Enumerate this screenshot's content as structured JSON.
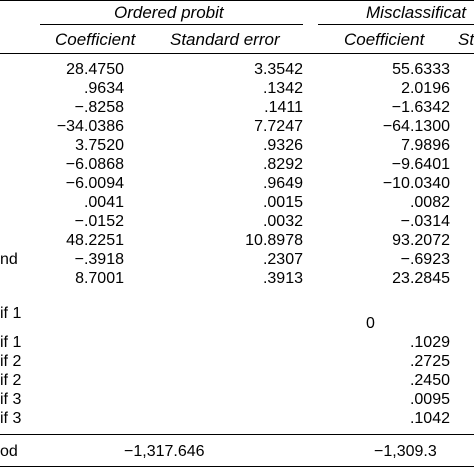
{
  "headers": {
    "group1": "Ordered probit",
    "group2": "Misclassificat",
    "coef1": "Coefficient",
    "se1": "Standard error",
    "coef2": "Coefficient",
    "se2_partial": "St"
  },
  "rows": [
    {
      "label": "",
      "c1": "28.4750",
      "c2": "3.3542",
      "c3": "55.6333"
    },
    {
      "label": "",
      "c1": ".9634",
      "c2": ".1342",
      "c3": "2.0196"
    },
    {
      "label": "",
      "c1": "−.8258",
      "c2": ".1411",
      "c3": "−1.6342"
    },
    {
      "label": "",
      "c1": "−34.0386",
      "c2": "7.7247",
      "c3": "−64.1300"
    },
    {
      "label": "",
      "c1": "3.7520",
      "c2": ".9326",
      "c3": "7.9896"
    },
    {
      "label": "",
      "c1": "−6.0868",
      "c2": ".8292",
      "c3": "−9.6401"
    },
    {
      "label": "",
      "c1": "−6.0094",
      "c2": ".9649",
      "c3": "−10.0340"
    },
    {
      "label": "",
      "c1": ".0041",
      "c2": ".0015",
      "c3": ".0082"
    },
    {
      "label": "",
      "c1": "−.0152",
      "c2": ".0032",
      "c3": "−.0314"
    },
    {
      "label": "",
      "c1": "48.2251",
      "c2": "10.8978",
      "c3": "93.2072"
    },
    {
      "label": "nd",
      "c1": "−.3918",
      "c2": ".2307",
      "c3": "−.6923"
    },
    {
      "label": "",
      "c1": "8.7001",
      "c2": ".3913",
      "c3": "23.2845"
    }
  ],
  "lower_rows": [
    {
      "label": "if 1",
      "c3": "0"
    },
    {
      "label": "if 1",
      "c3": ".1029"
    },
    {
      "label": "if 2",
      "c3": ".2725"
    },
    {
      "label": "if 2",
      "c3": ".2450"
    },
    {
      "label": "if 3",
      "c3": ".0095"
    },
    {
      "label": "if 3",
      "c3": ".1042"
    }
  ],
  "footer": {
    "label": "od",
    "v1": "−1,317.646",
    "v2": "−1,309.3"
  }
}
